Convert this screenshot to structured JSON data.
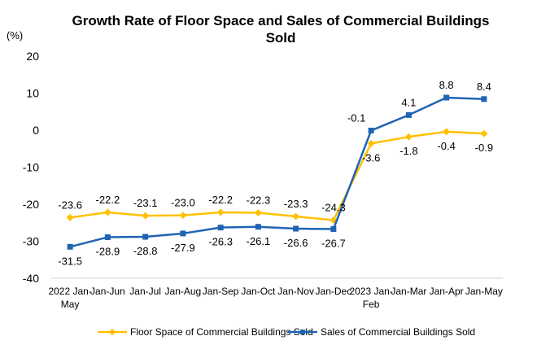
{
  "chart_data": {
    "type": "line",
    "title_lines": [
      "Growth Rate of Floor Space and Sales of Commercial Buildings",
      "Sold"
    ],
    "unit": "(%)",
    "categories": [
      [
        "2022 Jan-",
        "May"
      ],
      [
        "Jan-Jun"
      ],
      [
        "Jan-Jul"
      ],
      [
        "Jan-Aug"
      ],
      [
        "Jan-Sep"
      ],
      [
        "Jan-Oct"
      ],
      [
        "Jan-Nov"
      ],
      [
        "Jan-Dec"
      ],
      [
        "2023 Jan-",
        "Feb"
      ],
      [
        "Jan-Mar"
      ],
      [
        "Jan-Apr"
      ],
      [
        "Jan-May"
      ]
    ],
    "ylim": [
      -40,
      20
    ],
    "yticks": [
      20,
      10,
      0,
      -10,
      -20,
      -30,
      -40
    ],
    "series": [
      {
        "name": "Floor Space of Commercial Buildings Sold",
        "color": "#FFC000",
        "marker": "diamond",
        "values": [
          -23.6,
          -22.2,
          -23.1,
          -23.0,
          -22.2,
          -22.3,
          -23.3,
          -24.3,
          -3.6,
          -1.8,
          -0.4,
          -0.9
        ],
        "labels": [
          "-23.6",
          "-22.2",
          "-23.1",
          "-23.0",
          "-22.2",
          "-22.3",
          "-23.3",
          "-24.3",
          "-3.6",
          "-1.8",
          "-0.4",
          "-0.9"
        ]
      },
      {
        "name": "Sales of Commercial Buildings Sold",
        "color": "#1F63B5",
        "marker": "square",
        "values": [
          -31.5,
          -28.9,
          -28.8,
          -27.9,
          -26.3,
          -26.1,
          -26.6,
          -26.7,
          -0.1,
          4.1,
          8.8,
          8.4
        ],
        "labels": [
          "-31.5",
          "-28.9",
          "-28.8",
          "-27.9",
          "-26.3",
          "-26.1",
          "-26.6",
          "-26.7",
          "-0.1",
          "4.1",
          "8.8",
          "8.4"
        ]
      }
    ],
    "grid": false,
    "legend": "bottom"
  }
}
